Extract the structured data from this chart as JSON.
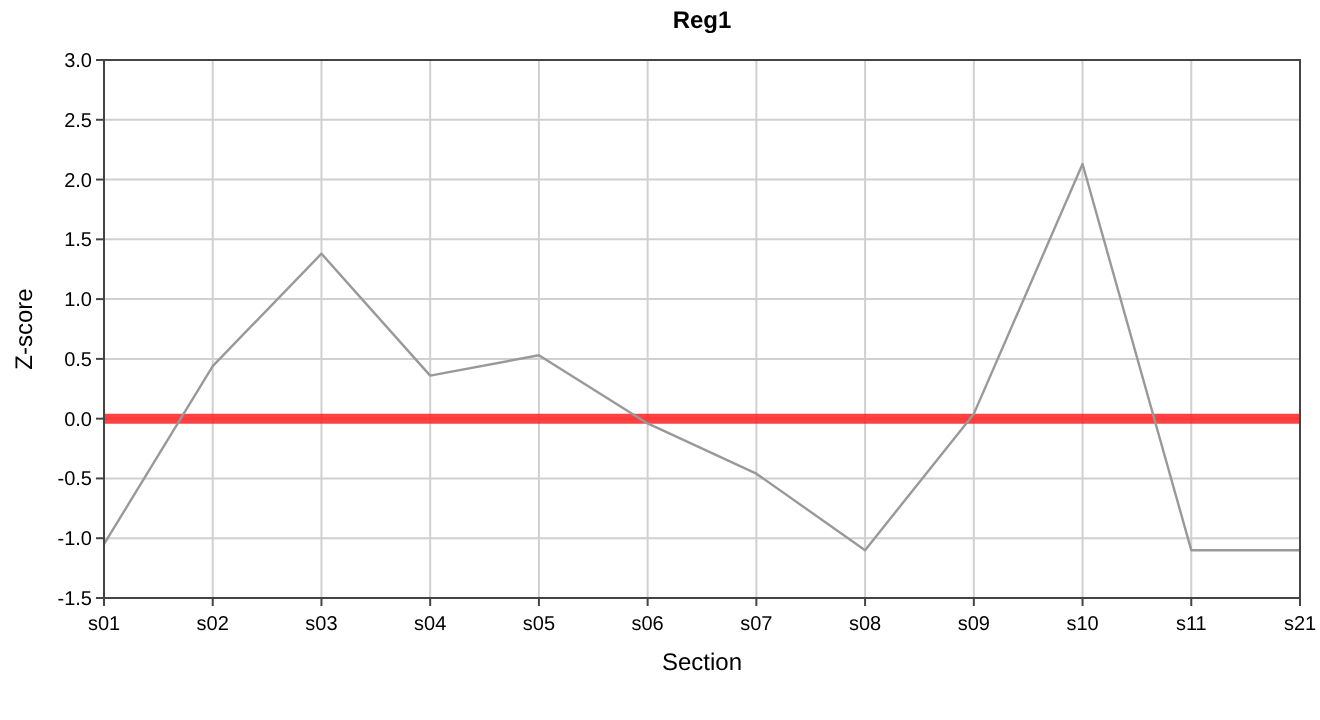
{
  "chart_data": {
    "type": "line",
    "title": "Reg1",
    "xlabel": "Section",
    "ylabel": "Z-score",
    "categories": [
      "s01",
      "s02",
      "s03",
      "s04",
      "s05",
      "s06",
      "s07",
      "s08",
      "s09",
      "s10",
      "s11",
      "s21"
    ],
    "series": [
      {
        "color": "#999999",
        "values": [
          -1.05,
          0.44,
          1.38,
          0.36,
          0.53,
          -0.04,
          -0.46,
          -1.1,
          0.04,
          2.13,
          -1.1,
          -1.1
        ]
      }
    ],
    "ylim": [
      -1.5,
      3.0
    ],
    "yticks": [
      {
        "value": -1.5,
        "label": "-1.5"
      },
      {
        "value": -1,
        "label": "-1.0"
      },
      {
        "value": -0.5,
        "label": "-0.5"
      },
      {
        "value": 0,
        "label": "0.0"
      },
      {
        "value": 0.5,
        "label": "0.5"
      },
      {
        "value": 1,
        "label": "1.0"
      },
      {
        "value": 1.5,
        "label": "1.5"
      },
      {
        "value": 2,
        "label": "2.0"
      },
      {
        "value": 2.5,
        "label": "2.5"
      },
      {
        "value": 3,
        "label": "3.0"
      }
    ],
    "grid": true,
    "marker": "none",
    "line_style": "solid",
    "ref_lines": [
      {
        "axis": "y",
        "value": 0,
        "color": "#ff2020"
      }
    ]
  }
}
